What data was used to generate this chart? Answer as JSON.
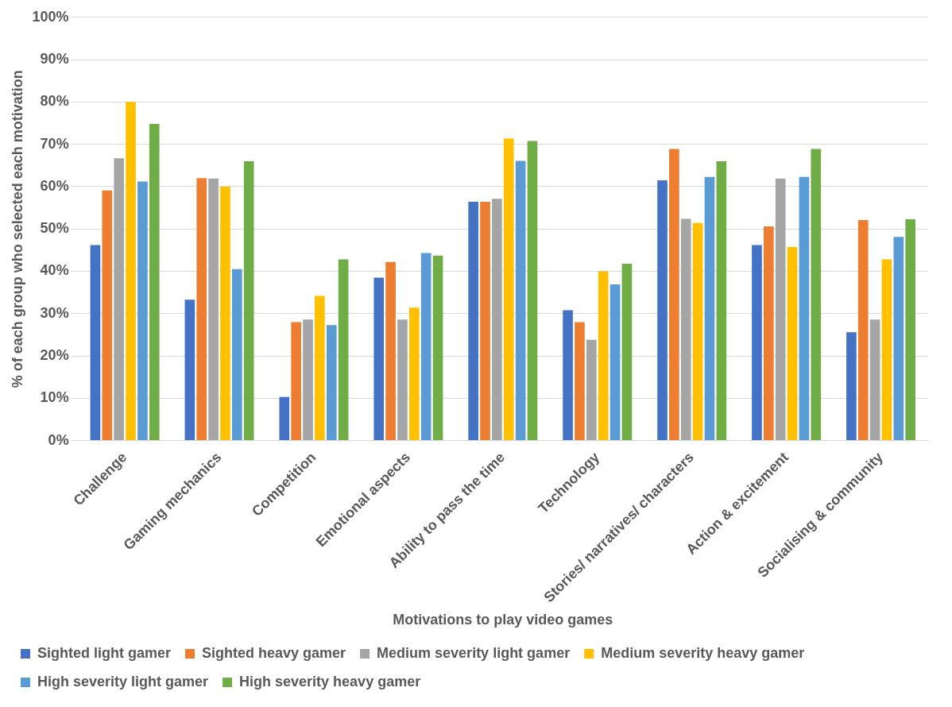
{
  "chart_data": {
    "type": "bar",
    "xlabel": "Motivations to play video games",
    "ylabel": "% of each group who selected each motivation",
    "categories": [
      "Challenge",
      "Gaming mechanics",
      "Competition",
      "Emotional aspects",
      "Ability to pass the time",
      "Technology",
      "Stories/ narratives/ characters",
      "Action & excitement",
      "Socialising & community"
    ],
    "series": [
      {
        "name": "Sighted light gamer",
        "color": "#4472c4",
        "values": [
          46.2,
          33.3,
          10.3,
          38.5,
          56.4,
          30.8,
          61.5,
          46.2,
          25.6
        ]
      },
      {
        "name": "Sighted heavy gamer",
        "color": "#ed7d31",
        "values": [
          59.1,
          62,
          28,
          42.2,
          56.4,
          28,
          68.9,
          50.6,
          52.1
        ]
      },
      {
        "name": "Medium severity light gamer",
        "color": "#a5a5a5",
        "values": [
          66.7,
          61.9,
          28.6,
          28.6,
          57.1,
          23.8,
          52.4,
          61.9,
          28.6
        ]
      },
      {
        "name": "Medium severity heavy gamer",
        "color": "#ffc000",
        "values": [
          80,
          60,
          34.2,
          31.4,
          71.4,
          40,
          51.4,
          45.7,
          42.8
        ]
      },
      {
        "name": "High severity light gamer",
        "color": "#5b9bd5",
        "values": [
          61.2,
          40.5,
          27.3,
          44.3,
          66.1,
          36.9,
          62.3,
          62.3,
          48.1
        ]
      },
      {
        "name": "High severity heavy gamer",
        "color": "#70ad47",
        "values": [
          74.8,
          66,
          42.8,
          43.7,
          70.8,
          41.8,
          66,
          68.9,
          52.3
        ]
      }
    ],
    "ylim": [
      0,
      100
    ],
    "yticks": [
      {
        "value": 0,
        "label": "0%"
      },
      {
        "value": 10,
        "label": "10%"
      },
      {
        "value": 20,
        "label": "20%"
      },
      {
        "value": 30,
        "label": "30%"
      },
      {
        "value": 40,
        "label": "40%"
      },
      {
        "value": 50,
        "label": "50%"
      },
      {
        "value": 60,
        "label": "60%"
      },
      {
        "value": 70,
        "label": "70%"
      },
      {
        "value": 80,
        "label": "80%"
      },
      {
        "value": 90,
        "label": "90%"
      },
      {
        "value": 100,
        "label": "100%"
      }
    ],
    "grid": "y",
    "legend": "bottom"
  }
}
